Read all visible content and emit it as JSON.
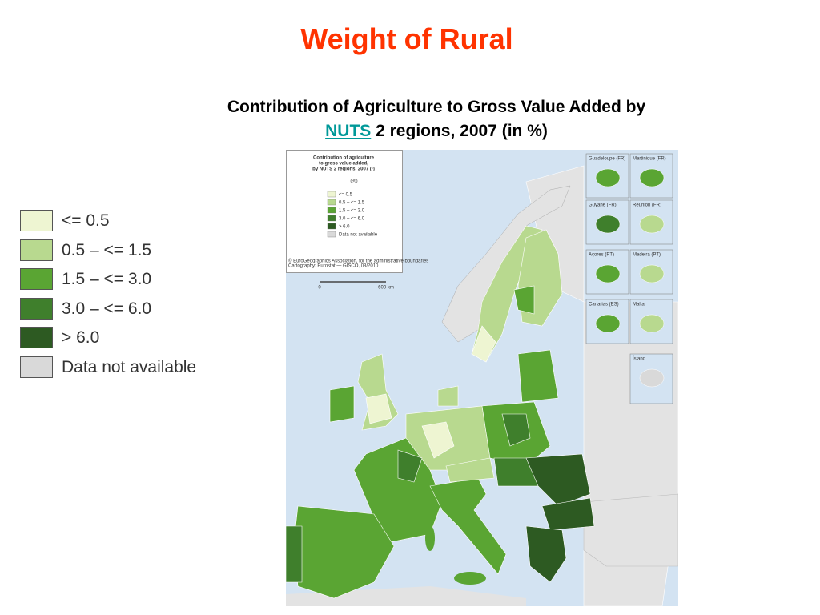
{
  "header": {
    "title": "Weight of Rural",
    "subtitle_line1": "Contribution of Agriculture to Gross Value Added by",
    "subtitle_link": "NUTS",
    "subtitle_rest": "2 regions, 2007 (in %)"
  },
  "legend": {
    "items": [
      {
        "label": "<= 0.5",
        "color": "#eef5d2"
      },
      {
        "label": "0.5 – <= 1.5",
        "color": "#b8d98f"
      },
      {
        "label": "1.5 – <= 3.0",
        "color": "#5aa533"
      },
      {
        "label": "3.0 – <= 6.0",
        "color": "#3f7f2c"
      },
      {
        "label": "> 6.0",
        "color": "#2d5a22"
      },
      {
        "label": "Data not available",
        "color": "#d9d9d9"
      }
    ]
  },
  "map": {
    "legend_title": [
      "Contribution of agriculture",
      "to gross value added,",
      "by NUTS 2 regions, 2007 (¹)"
    ],
    "unit": "(%)",
    "legend_items": [
      "<= 0.5",
      "0.5 – <= 1.5",
      "1.5 – <= 3.0",
      "3.0 – <= 6.0",
      "> 6.0",
      "Data not available"
    ],
    "copyright": "© EuroGeographics Association, for the administrative boundaries",
    "cartography": "Cartography: Eurostat — GISCO, 03/2010",
    "scale": [
      "0",
      "600 km"
    ],
    "insets": [
      "Guadeloupe (FR)",
      "Martinique (FR)",
      "Guyane (FR)",
      "Réunion (FR)",
      "Açores (PT)",
      "Madeira (PT)",
      "Canarias (ES)",
      "Malta",
      "Ísland"
    ]
  }
}
